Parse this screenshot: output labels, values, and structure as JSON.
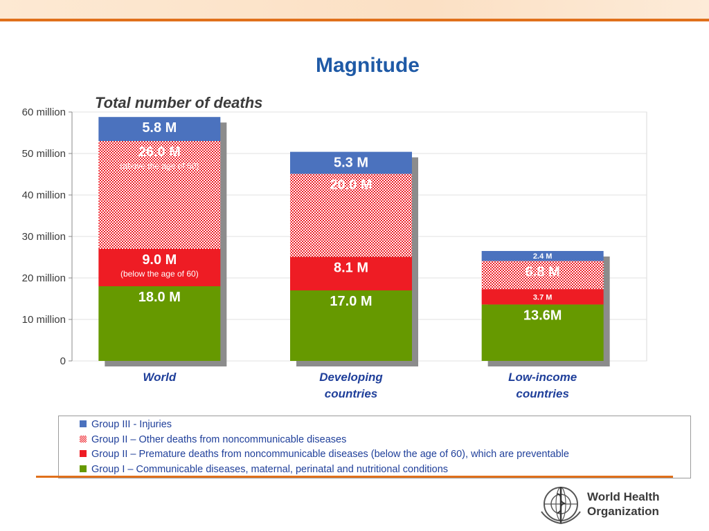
{
  "title": "Magnitude",
  "chart_data": {
    "type": "bar",
    "stacked": true,
    "title": "Total number of deaths",
    "categories": [
      [
        "World"
      ],
      [
        "Developing",
        "countries"
      ],
      [
        "Low-income",
        "countries"
      ]
    ],
    "ylim": [
      0,
      60
    ],
    "yticks": [
      0,
      10,
      20,
      30,
      40,
      50,
      60
    ],
    "ytick_labels": [
      "0",
      "10 million",
      "20 million",
      "30 million",
      "40 million",
      "50 million",
      "60 million"
    ],
    "grid": true,
    "series": [
      {
        "name": "Group I – Communicable diseases, maternal, perinatal and nutritional conditions",
        "color": "#669900",
        "pattern": false,
        "values": [
          18.0,
          17.0,
          13.6
        ],
        "labels": [
          "18.0 M",
          "17.0 M",
          "13.6M"
        ],
        "sublabels": [
          "",
          "",
          ""
        ]
      },
      {
        "name": "Group II – Premature deaths from noncommunicable diseases (below the age of 60), which are preventable",
        "color": "#ee1c24",
        "pattern": false,
        "values": [
          9.0,
          8.1,
          3.7
        ],
        "labels": [
          "9.0 M",
          "8.1 M",
          "3.7 M"
        ],
        "sublabels": [
          "(below the age of 60)",
          "",
          ""
        ]
      },
      {
        "name": "Group II – Other deaths from noncommunicable diseases",
        "color": "#ee1c24",
        "pattern": true,
        "values": [
          26.0,
          20.0,
          6.8
        ],
        "labels": [
          "26.0 M",
          "20.0 M",
          "6.8 M"
        ],
        "sublabels": [
          "(above the age of 60)",
          "",
          ""
        ]
      },
      {
        "name": "Group III - Injuries",
        "color": "#4b72be",
        "pattern": false,
        "values": [
          5.8,
          5.3,
          2.4
        ],
        "labels": [
          "5.8 M",
          "5.3 M",
          "2.4 M"
        ],
        "sublabels": [
          "",
          "",
          ""
        ]
      }
    ]
  },
  "legend": [
    {
      "label": "Group III - Injuries",
      "color": "#4b72be",
      "pattern": false
    },
    {
      "label": "Group II – Other deaths from noncommunicable diseases",
      "color": "#ee1c24",
      "pattern": true
    },
    {
      "label": "Group II – Premature deaths from noncommunicable diseases (below the age of 60), which are preventable",
      "color": "#ee1c24",
      "pattern": false
    },
    {
      "label": "Group I – Communicable diseases, maternal, perinatal and nutritional conditions",
      "color": "#669900",
      "pattern": false
    }
  ],
  "logo": {
    "text_line1": "World Health",
    "text_line2": "Organization"
  }
}
